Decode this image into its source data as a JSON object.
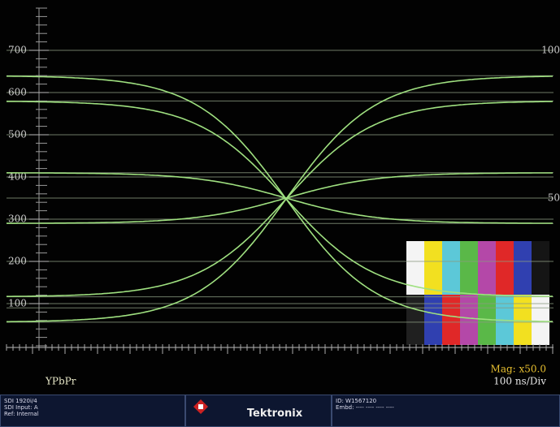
{
  "display": {
    "scale_labels": [
      700,
      600,
      500,
      400,
      300,
      200,
      100
    ],
    "right_labels": [
      {
        "value": 700,
        "label": "100"
      },
      {
        "value": 350,
        "label": "50"
      }
    ],
    "graticule": [
      700,
      640,
      600,
      580,
      500,
      410,
      400,
      350,
      300,
      290,
      200,
      116,
      100,
      90,
      56
    ],
    "traces": [
      {
        "start": 640,
        "end": 56
      },
      {
        "start": 580,
        "end": 116
      },
      {
        "start": 410,
        "end": 290
      },
      {
        "start": 290,
        "end": 410
      },
      {
        "start": 116,
        "end": 580
      },
      {
        "start": 56,
        "end": 640
      }
    ],
    "format": "YPbPr",
    "mag": "Mag: x50.0",
    "timebase": "100 ns/Div"
  },
  "status": {
    "left": [
      "SDI 1920i/4",
      "SDI Input: A",
      "Ref: Internal"
    ],
    "brand": "Tektronix",
    "right": [
      "ID: W1567120",
      "Embd: ---- ---- ---- ----"
    ]
  }
}
